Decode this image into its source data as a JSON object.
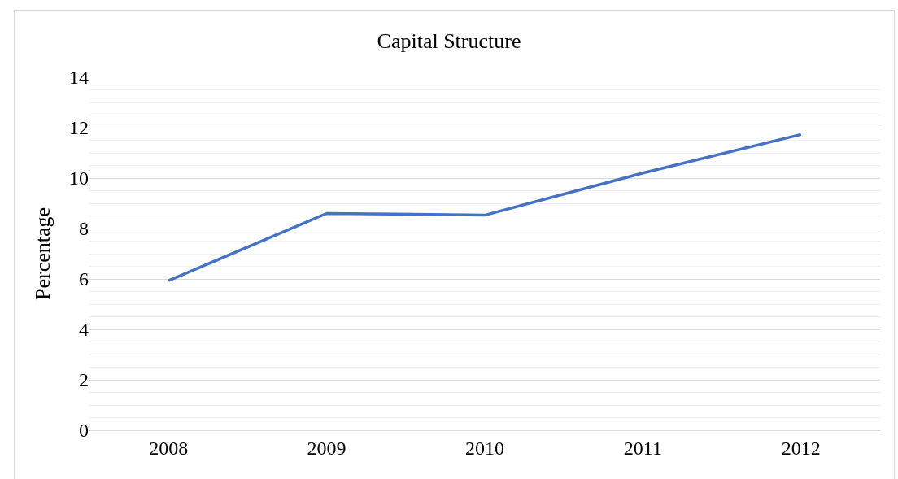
{
  "chart_data": {
    "type": "line",
    "title": "Capital Structure",
    "ylabel": "Percentage",
    "categories": [
      "2008",
      "2009",
      "2010",
      "2011",
      "2012"
    ],
    "series": [
      {
        "color": "#4472c4",
        "values": [
          5.93,
          8.6,
          8.53,
          10.2,
          11.73
        ]
      }
    ],
    "ylim": [
      0,
      14
    ],
    "yticks": [
      0,
      2,
      4,
      6,
      8,
      10,
      12,
      14
    ],
    "grid": "y",
    "marker": "none",
    "line_style": "solid"
  }
}
